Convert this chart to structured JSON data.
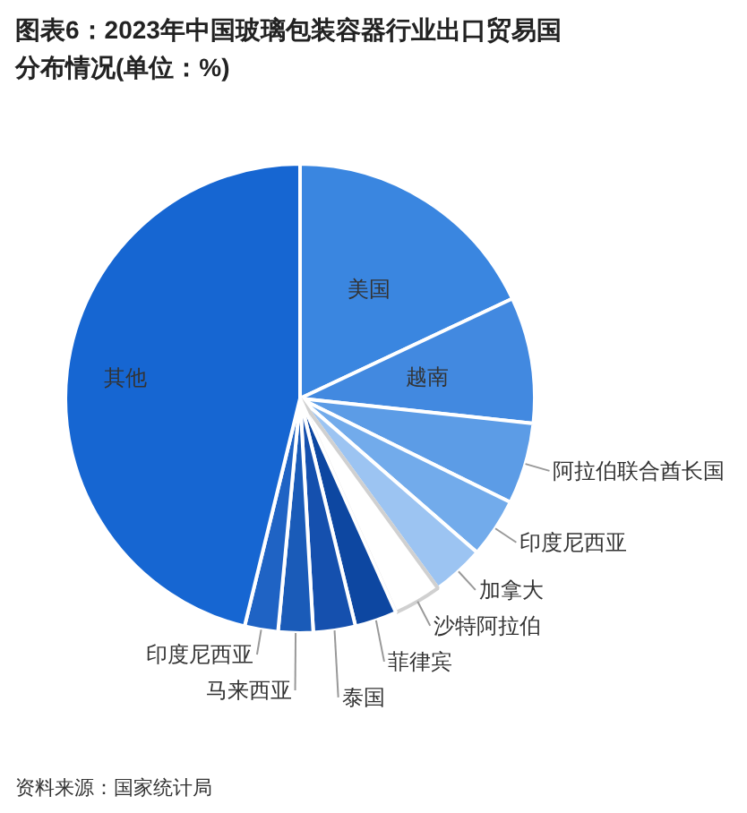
{
  "chart_data": {
    "type": "pie",
    "title": "图表6：2023年中国玻璃包装容器行业出口贸易国分布情况(单位：%)",
    "categories": [
      "美国",
      "越南",
      "阿拉伯联合酋长国",
      "印度尼西亚",
      "加拿大",
      "沙特阿拉伯",
      "菲律宾",
      "泰国",
      "马来西亚",
      "印度尼西亚",
      "其他"
    ],
    "values": [
      18,
      8.7,
      5.6,
      4.1,
      3.6,
      3.3,
      2.9,
      2.9,
      2.4,
      2.3,
      46.2
    ],
    "colors": [
      "#3a86e0",
      "#4289e0",
      "#5c9ce6",
      "#72abeb",
      "#9cc4f2",
      "#ffffff",
      "#0d47a1",
      "#1550ae",
      "#1a5bb8",
      "#1f63c4",
      "#1666d2"
    ],
    "annotations": [
      "资料来源：国家统计局"
    ]
  }
}
